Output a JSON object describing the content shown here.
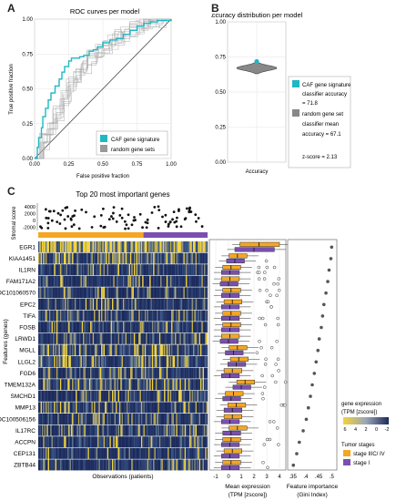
{
  "panels": {
    "a": "A",
    "b": "B",
    "c": "C"
  },
  "colors": {
    "caf": "#1fb8c3",
    "random": "#999999",
    "stage_late": "#f5a623",
    "stage_early": "#7a4fb0",
    "heat_low": "#1b2a5c",
    "heat_high": "#f2d33a",
    "dots": "#111111"
  },
  "chart_data": [
    {
      "type": "line",
      "title": "ROC curves per model",
      "xlabel": "False positive fraction",
      "ylabel": "True positive fraction",
      "xlim": [
        0,
        1
      ],
      "ylim": [
        0,
        1
      ],
      "xticks": [
        "0.00",
        "0.25",
        "0.50",
        "0.75",
        "1.00"
      ],
      "yticks": [
        "0.00",
        "0.25",
        "0.50",
        "0.75",
        "1.00"
      ],
      "grid": true,
      "legend_position": "bottom-right",
      "series": [
        {
          "name": "CAF gene signature",
          "x": [
            0,
            0.02,
            0.03,
            0.05,
            0.06,
            0.08,
            0.1,
            0.12,
            0.15,
            0.18,
            0.2,
            0.22,
            0.25,
            0.27,
            0.3,
            0.33,
            0.36,
            0.4,
            0.43,
            0.46,
            0.5,
            0.55,
            0.6,
            0.65,
            0.7,
            0.75,
            0.8,
            0.85,
            0.9,
            1.0
          ],
          "y": [
            0,
            0.08,
            0.15,
            0.22,
            0.3,
            0.36,
            0.42,
            0.47,
            0.52,
            0.57,
            0.62,
            0.66,
            0.7,
            0.72,
            0.72,
            0.73,
            0.74,
            0.77,
            0.78,
            0.8,
            0.83,
            0.85,
            0.86,
            0.89,
            0.92,
            0.95,
            0.97,
            0.98,
            0.99,
            1.0
          ]
        },
        {
          "name": "random gene sets",
          "x": [
            0,
            0.05,
            0.1,
            0.15,
            0.2,
            0.25,
            0.3,
            0.35,
            0.4,
            0.45,
            0.5,
            0.55,
            0.6,
            0.65,
            0.7,
            0.75,
            0.8,
            0.85,
            0.9,
            0.95,
            1.0
          ],
          "y": [
            0,
            0.12,
            0.22,
            0.33,
            0.44,
            0.53,
            0.6,
            0.66,
            0.72,
            0.77,
            0.8,
            0.84,
            0.87,
            0.9,
            0.93,
            0.95,
            0.97,
            0.98,
            0.99,
            1.0,
            1.0
          ]
        },
        {
          "name": "",
          "x": [
            0,
            1
          ],
          "y": [
            0,
            1
          ]
        }
      ]
    },
    {
      "type": "violin",
      "title": "Accuracy distribution per model",
      "xlabel": "Accuracy",
      "ylim": [
        0,
        1
      ],
      "yticks": [
        "0.00",
        "0.25",
        "0.50",
        "0.75",
        "1.00"
      ],
      "caf_accuracy": 71.8,
      "random_mean_accuracy": 67.1,
      "random_range": [
        0.63,
        0.72
      ],
      "annotation": {
        "caf_label": "CAF gene signature",
        "caf_line1": "classifier accuracy",
        "caf_line2": "= 71.8",
        "random_label": "random gene set",
        "random_line1": "classifier mean",
        "random_line2": "accuracy = 67.1",
        "zscore": "z-score = 2.13"
      }
    },
    {
      "type": "heatmap",
      "title": "Top 20 most important genes",
      "xlabel": "Observations (patients)",
      "ylabel": "Features (genes)",
      "top_track_label": "Stromal score",
      "top_track_ticks": [
        "4000",
        "2000",
        "0",
        "-2000"
      ],
      "genes": [
        "EGR1",
        "KIAA1451",
        "IL1RN",
        "FAM171A2",
        "LOC101060570",
        "EPC2",
        "TIFA",
        "FOSB",
        "LRWD1",
        "MGLL",
        "LLGL2",
        "FGD6",
        "TMEM132A",
        "SMCHD1",
        "MMP13",
        "LOC100506156",
        "IL17RC",
        "ACCPN",
        "CEP131",
        "ZBTB44"
      ],
      "stage_split_fraction": 0.62,
      "expression_xlabel_1": "Mean expression",
      "expression_xlabel_2": "(TPM [zscore])",
      "expression_ticks": [
        "-1",
        "0",
        "1",
        "2",
        "3",
        "4"
      ],
      "expression_means_late": [
        2.4,
        0.7,
        0.2,
        0.1,
        0.2,
        0.3,
        0.2,
        0.2,
        0.1,
        0.7,
        0.8,
        0.3,
        1.3,
        0.4,
        0.6,
        0.3,
        0.7,
        0.2,
        0.3,
        0.2
      ],
      "expression_means_early": [
        2.0,
        0.5,
        0.1,
        0.0,
        0.1,
        0.1,
        0.1,
        0.1,
        0.0,
        0.4,
        0.6,
        0.1,
        1.0,
        0.2,
        0.3,
        0.1,
        0.2,
        0.1,
        0.1,
        0.1
      ],
      "importance_xlabel_1": "Feature importance",
      "importance_xlabel_2": "(Gini Index)",
      "importance_ticks": [
        ".35",
        ".4",
        ".45",
        ".5"
      ],
      "importance": [
        0.5,
        0.497,
        0.49,
        0.485,
        0.478,
        0.47,
        0.465,
        0.46,
        0.452,
        0.447,
        0.44,
        0.433,
        0.425,
        0.418,
        0.41,
        0.402,
        0.39,
        0.375,
        0.365,
        0.352
      ],
      "legend": {
        "expr_title1": "gene expression",
        "expr_title2": "(TPM [zscore])",
        "expr_ticks": [
          "6",
          "4",
          "2",
          "0",
          "-2"
        ],
        "stage_title": "Tumor stages",
        "stage_late": "stage IIIC/ IV",
        "stage_early": "stage I"
      }
    }
  ]
}
